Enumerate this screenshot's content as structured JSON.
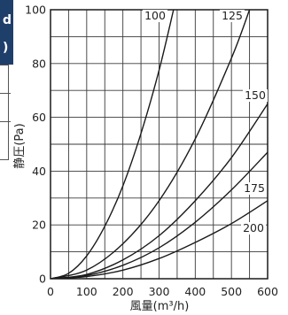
{
  "cut_panel": {
    "line1": "d",
    "line2": ")"
  },
  "chart_data": {
    "type": "line",
    "xlabel": "風量(m³/h)",
    "ylabel": "静圧(Pa)",
    "xlim": [
      0,
      600
    ],
    "ylim": [
      0,
      100
    ],
    "x_ticks": [
      "0",
      "100",
      "200",
      "300",
      "400",
      "500",
      "600"
    ],
    "y_ticks": [
      "0",
      "20",
      "40",
      "60",
      "80",
      "100"
    ],
    "grid": true,
    "series": [
      {
        "name": "100",
        "x": [
          0,
          50,
          100,
          150,
          200,
          250,
          300,
          340
        ],
        "y": [
          0,
          2,
          8.5,
          19.5,
          34.5,
          54,
          77.5,
          100
        ]
      },
      {
        "name": "125",
        "x": [
          0,
          100,
          200,
          300,
          400,
          500,
          550
        ],
        "y": [
          0,
          3.2,
          13,
          29,
          52,
          82,
          100
        ]
      },
      {
        "name": "150",
        "x": [
          0,
          100,
          200,
          300,
          400,
          500,
          600
        ],
        "y": [
          0,
          1.6,
          7,
          16,
          29,
          45,
          65
        ]
      },
      {
        "name": "175",
        "x": [
          0,
          100,
          200,
          300,
          400,
          500,
          600
        ],
        "y": [
          0,
          1.2,
          5,
          11.5,
          21,
          33,
          47
        ]
      },
      {
        "name": "200",
        "x": [
          0,
          100,
          200,
          300,
          400,
          500,
          600
        ],
        "y": [
          0,
          0.8,
          3.2,
          7.5,
          13.5,
          20.5,
          29
        ]
      }
    ],
    "colors": {
      "line": "#1a1a1a",
      "grid": "#3a3a3a",
      "header": "#1f3f6b"
    }
  }
}
